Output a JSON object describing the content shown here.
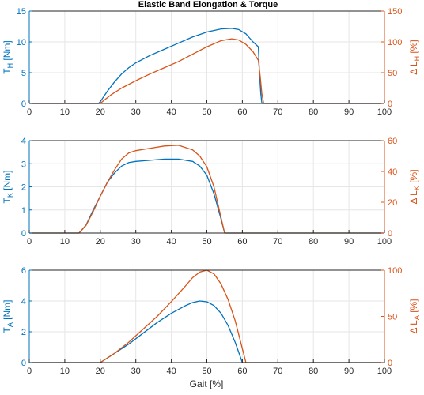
{
  "chart_data": {
    "title": "Elastic Band Elongation & Torque",
    "xlabel": "Gait [%]",
    "x_ticks": [
      0,
      10,
      20,
      30,
      40,
      50,
      60,
      70,
      80,
      90,
      100
    ],
    "xlim": [
      0,
      100
    ],
    "colors": {
      "torque": "#0072bd",
      "elongation": "#d95319",
      "grid": "#e6e6e6",
      "axis": "#262626"
    },
    "grid": true,
    "panels": [
      {
        "type": "line",
        "ylabel_left": {
          "base": "T",
          "sub": "H",
          "unit": " [Nm]"
        },
        "ylabel_right": {
          "base": "Δ L",
          "sub": "H",
          "unit": " [%]"
        },
        "ylim_left": [
          0,
          15
        ],
        "ylim_right": [
          0,
          150
        ],
        "yticks_left": [
          0,
          5,
          10,
          15
        ],
        "yticks_right": [
          0,
          50,
          100,
          150
        ],
        "series": [
          {
            "axis": "left",
            "color": "torque",
            "x": [
              0,
              19.5,
              20,
              22,
              24,
              26,
              28,
              30,
              34,
              38,
              42,
              46,
              50,
              54,
              57,
              59,
              61,
              63,
              64.5,
              64.8,
              65.2,
              65.5,
              66,
              100
            ],
            "y": [
              0,
              0,
              0.3,
              2.0,
              3.5,
              4.8,
              5.8,
              6.6,
              7.8,
              8.8,
              9.8,
              10.8,
              11.6,
              12.1,
              12.2,
              12.0,
              11.3,
              10.0,
              9.2,
              5.0,
              1.5,
              0,
              0,
              0
            ]
          },
          {
            "axis": "right",
            "color": "elongation",
            "x": [
              0,
              20,
              21,
              23,
              26,
              30,
              34,
              38,
              42,
              46,
              50,
              54,
              57,
              59,
              61,
              63,
              64.5,
              65,
              65.5,
              66,
              100
            ],
            "y": [
              0,
              0,
              5,
              14,
              25,
              37,
              48,
              58,
              68,
              80,
              92,
              102,
              105,
              103,
              96,
              84,
              70,
              45,
              15,
              0,
              0
            ]
          }
        ]
      },
      {
        "type": "line",
        "ylabel_left": {
          "base": "T",
          "sub": "K",
          "unit": " [Nm]"
        },
        "ylabel_right": {
          "base": "Δ L",
          "sub": "K",
          "unit": " [%]"
        },
        "ylim_left": [
          0,
          4
        ],
        "ylim_right": [
          0,
          60
        ],
        "yticks_left": [
          0,
          1,
          2,
          3,
          4
        ],
        "yticks_right": [
          0,
          20,
          40,
          60
        ],
        "series": [
          {
            "axis": "left",
            "color": "torque",
            "x": [
              0,
              14,
              16,
              18,
              20,
              22,
              24,
              26,
              28,
              30,
              34,
              38,
              42,
              46,
              48,
              50,
              52,
              54,
              55,
              100
            ],
            "y": [
              0,
              0,
              0.35,
              1.0,
              1.6,
              2.2,
              2.6,
              2.9,
              3.05,
              3.1,
              3.15,
              3.2,
              3.2,
              3.1,
              2.9,
              2.5,
              1.7,
              0.6,
              0,
              0
            ]
          },
          {
            "axis": "right",
            "color": "elongation",
            "x": [
              0,
              14,
              16,
              18,
              20,
              22,
              24,
              26,
              28,
              30,
              34,
              38,
              42,
              46,
              48,
              50,
              52,
              54,
              55,
              100
            ],
            "y": [
              0,
              0,
              5,
              14,
              24,
              33,
              41,
              48,
              52,
              53.5,
              55,
              56.5,
              57,
              54,
              50,
              43,
              30,
              10,
              0,
              0
            ]
          }
        ]
      },
      {
        "type": "line",
        "ylabel_left": {
          "base": "T",
          "sub": "A",
          "unit": " [Nm]"
        },
        "ylabel_right": {
          "base": "Δ L",
          "sub": "A",
          "unit": " [%]"
        },
        "ylim_left": [
          0,
          6
        ],
        "ylim_right": [
          0,
          100
        ],
        "yticks_left": [
          0,
          2,
          4,
          6
        ],
        "yticks_right": [
          0,
          50,
          100
        ],
        "series": [
          {
            "axis": "left",
            "color": "torque",
            "x": [
              0,
              20,
              24,
              28,
              32,
              36,
              40,
              44,
              46,
              48,
              50,
              52,
              54,
              56,
              58,
              60,
              100
            ],
            "y": [
              0,
              0,
              0.6,
              1.2,
              1.9,
              2.6,
              3.2,
              3.7,
              3.9,
              4.0,
              3.95,
              3.7,
              3.2,
              2.4,
              1.3,
              0,
              0
            ]
          },
          {
            "axis": "right",
            "color": "elongation",
            "x": [
              0,
              20,
              24,
              28,
              32,
              36,
              40,
              44,
              46,
              48,
              50,
              52,
              54,
              56,
              58,
              60,
              61,
              100
            ],
            "y": [
              0,
              0,
              10,
              22,
              36,
              50,
              66,
              83,
              92,
              98,
              100,
              96,
              85,
              68,
              45,
              15,
              0,
              0
            ]
          }
        ]
      }
    ]
  }
}
